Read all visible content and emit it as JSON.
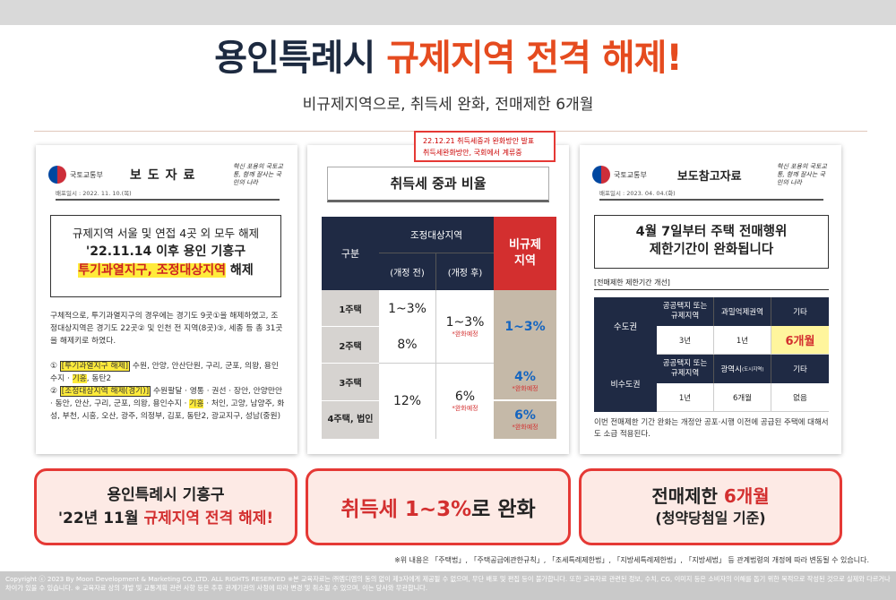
{
  "title": {
    "dark": "용인특례시 ",
    "red": "규제지역 전격 해제!"
  },
  "subtitle": "비규제지역으로, 취득세 완화, 전매제한 6개월",
  "card1": {
    "ministry": "국토교통부",
    "docname": "보도자료",
    "slogan": "혁신 포용의 국토교통, 함께 잘사는 국민의 나라",
    "date": "배포일시 : 2022. 11. 10.(목)",
    "box_line1": "규제지역 서울 및 연접 4곳 외 모두 해제",
    "box_line2": "'22.11.14 이후 용인 기흥구",
    "box_line3_hl": "투기과열지구, 조정대상지역",
    "box_line3_rest": " 해제",
    "body": "구체적으로, 투기과열지구의 경우에는 경기도 9곳①을 해제하였고, 조정대상지역은 경기도 22곳② 및 인천 전 지역(8곳)③, 세종 등 총 31곳을 해제키로 하였다.",
    "item1_num": "① ",
    "item1_hl": "[투기과열지구 해제]",
    "item1_a": " 수원, 안양, 안산단원, 구리, 군포, 의왕, 용인수지 · ",
    "item1_hy": "기흥",
    "item1_b": ", 동탄2",
    "item2_num": "② ",
    "item2_hl": "[조정대상지역 해제(경기)]",
    "item2_a": " 수원팔달 · 영통 · 권선 · 장안, 안양만안 · 동안, 안산, 구리, 군포, 의왕, 용인수지 · ",
    "item2_hy": "기흥",
    "item2_b": " · 처인, 고양, 남양주, 화성, 부천, 시흥, 오산, 광주, 의정부, 김포, 동탄2, 광교지구, 성남(중원)"
  },
  "notice": {
    "line1": "22.12.21 취득세중과 완화방안 발표",
    "line2": "취득세완화방안, 국회에서 계류중"
  },
  "card2": {
    "title": "취득세 중과 비율",
    "h_gubun": "구분",
    "h_jojeong": "조정대상지역",
    "h_before": "(개정 전)",
    "h_after": "(개정 후)",
    "h_bigyu": "비규제 지역",
    "r1": "1주택",
    "r2": "2주택",
    "r3": "3주택",
    "r4": "4주택, 법인",
    "r12_before_1": "1~3%",
    "r12_before_2": "8%",
    "r12_after": "1~3%",
    "r12_after_note": "*완화예정",
    "r12_bigyu": "1~3%",
    "r34_before": "12%",
    "r34_after": "6%",
    "r34_after_note": "*완화예정",
    "r3_bigyu": "4%",
    "r3_bigyu_note": "*완화예정",
    "r4_bigyu": "6%",
    "r4_bigyu_note": "*완화예정"
  },
  "card3": {
    "ministry": "국토교통부",
    "docname": "보도참고자료",
    "slogan": "혁신 포용의 국토교통, 함께 잘사는 국민의 나라",
    "date": "배포일시 : 2023. 04. 04.(화)",
    "title1": "4월 7일부터 주택 전매행위",
    "title2": "제한기간이 완화됩니다",
    "label": "[전매제한 제한기간 개선]",
    "sudo": "수도권",
    "bisudo": "비수도권",
    "h_gongong": "공공택지 또는 규제지역",
    "h_gwamil": "과밀억제권역",
    "h_gita": "기타",
    "v_3y": "3년",
    "v_1y": "1년",
    "v_6m": "6개월",
    "h_gongong2": "공공택지 또는 규제지역",
    "h_gwangyeok": "광역시",
    "h_gwangyeok_sub": "(도시지역)",
    "h_gita2": "기타",
    "v2_1y": "1년",
    "v2_6m": "6개월",
    "v2_none": "없음",
    "foot": "이번 전매제한 기간 완화는 개정안 공포·시행 이전에 공급된 주택에 대해서도 소급 적용된다."
  },
  "pill1": {
    "a": "용인특례시 기흥구",
    "b_pre": "'22년 11월 ",
    "b_red": "규제지역 전격 해제!"
  },
  "pill2": {
    "red": "취득세 1~3%",
    "rest": "로 완화"
  },
  "pill3": {
    "pre": "전매제한 ",
    "red": "6개월",
    "b": "(청약당첨일 기준)"
  },
  "footnote": "※위 내용은 「주택법」, 「주택공급에관한규칙」, 「조세특례제한법」, 「지방세특례제한법」, 「지방세법」 등 관계법령의 개정에 따라 변동될 수 있습니다.",
  "copyright": "Copyright ⓒ 2023 By Moon Development & Marketing CO.,LTD. ALL RIGHTS RESERVED  ※본 교육자료는 ㈜엠디엠의 동의 없이 제3자에게 제공될 수 없으며, 무단 배포 및 편집 등이 불가합니다. 또한 교육자료 관련된 정보, 수치, CG, 이미지 등은 소비자의 이해를 돕기 위한 목적으로 작성된 것으로 실제와 다르거나 차이가 있을 수 있습니다. ※ 교육자료 상의 개발 및 교통계획 관련 사항 등은 추후 관계기관의 사정에 따라 변경 및 취소될 수 있으며, 이는 당사와 무관합니다."
}
